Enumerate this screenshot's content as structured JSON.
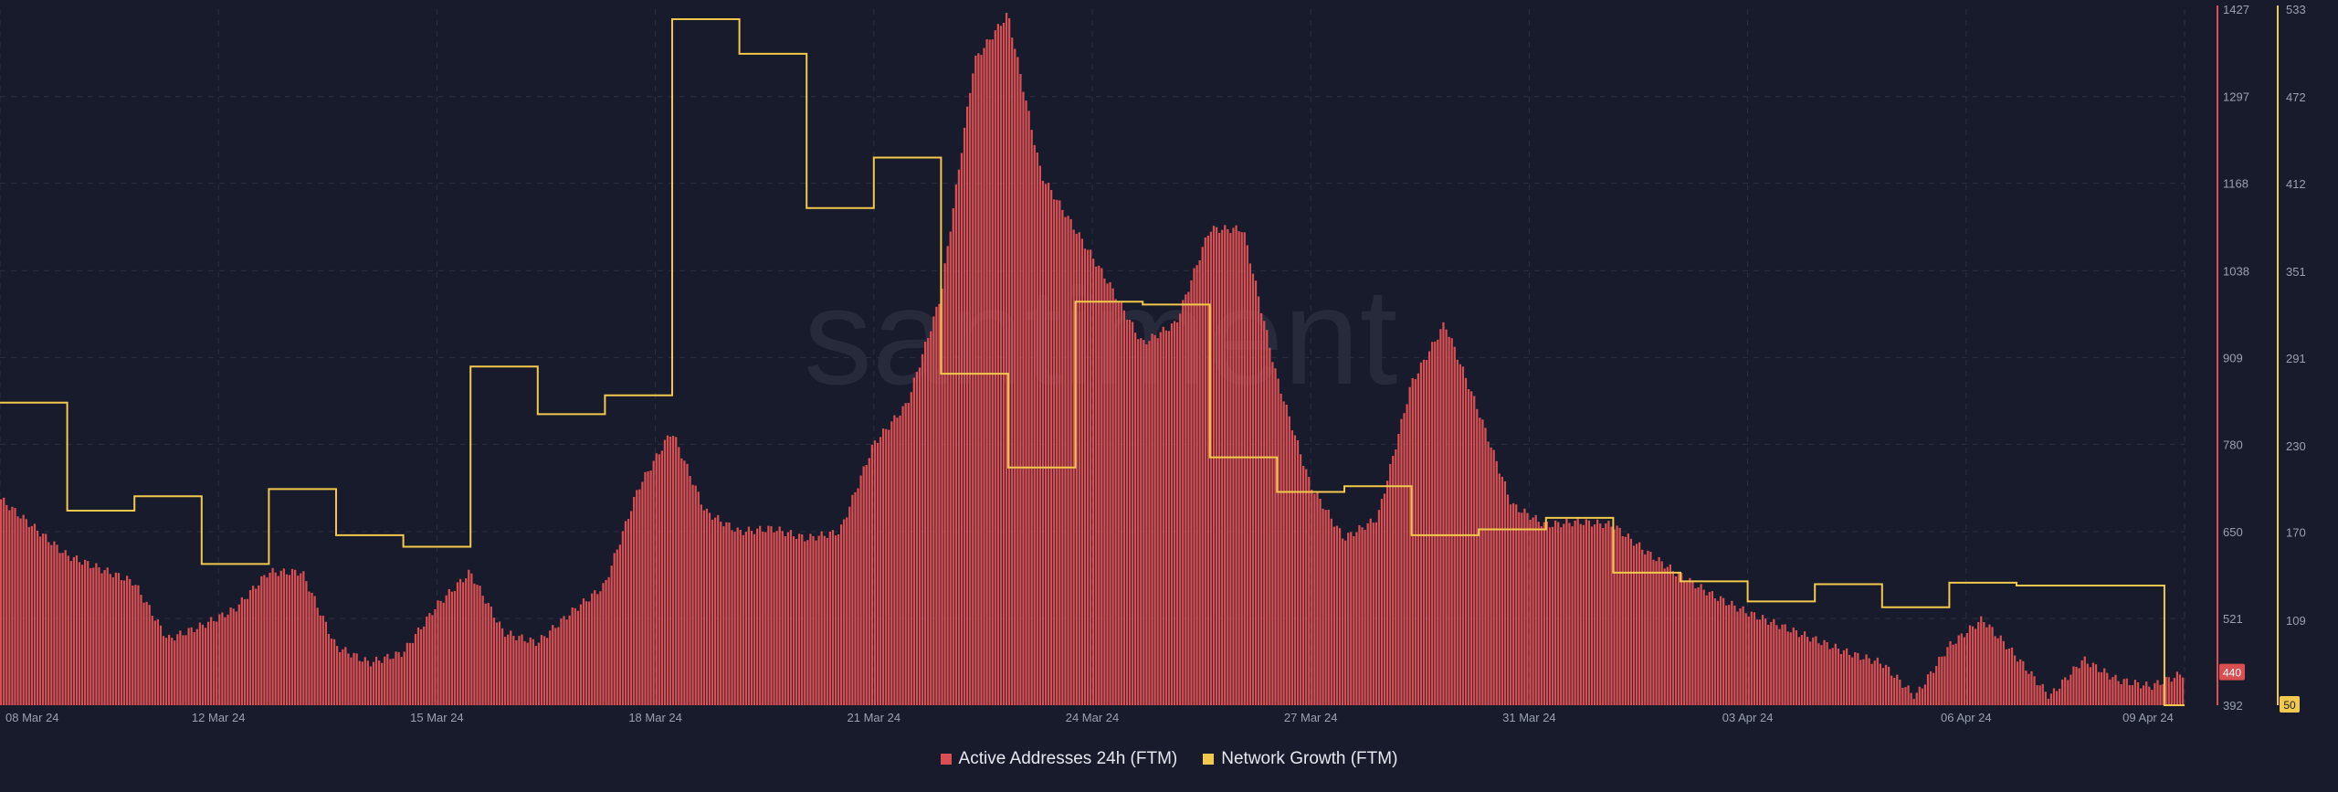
{
  "watermark": "santiment",
  "legend": {
    "active_label": "Active Addresses 24h (FTM)",
    "growth_label": "Network Growth (FTM)"
  },
  "colors": {
    "background": "#181b2b",
    "grid": "#2a2e42",
    "active": "#d94f52",
    "growth": "#f2c94c",
    "axis_text": "#9aa0b4"
  },
  "chart_data": {
    "type": "bar",
    "x_ticks": [
      "08 Mar 24",
      "12 Mar 24",
      "15 Mar 24",
      "18 Mar 24",
      "21 Mar 24",
      "24 Mar 24",
      "27 Mar 24",
      "31 Mar 24",
      "03 Apr 24",
      "06 Apr 24",
      "09 Apr 24"
    ],
    "grid": true,
    "series": [
      {
        "name": "Active Addresses 24h (FTM)",
        "type": "bar",
        "axis": "left",
        "ylim": [
          392,
          1427
        ],
        "y_ticks": [
          392,
          521,
          650,
          780,
          909,
          1038,
          1168,
          1297,
          1427
        ],
        "last_value": "440",
        "x": [
          0,
          1,
          1.5,
          2,
          2.5,
          3,
          3.5,
          4,
          4.5,
          5,
          5.5,
          6,
          6.5,
          7,
          7.5,
          8,
          8.5,
          9,
          9.5,
          10,
          10.5,
          11,
          11.5,
          12,
          12.5,
          13,
          13.5,
          14,
          14.5,
          15,
          15.5,
          16,
          16.5,
          17,
          17.5,
          18,
          18.5,
          19,
          19.5,
          20,
          20.5,
          21,
          21.5,
          22,
          22.5,
          23,
          23.5,
          24,
          24.5,
          25,
          25.5,
          26,
          26.5,
          27,
          27.5,
          28,
          28.5,
          29,
          29.5,
          30,
          30.5,
          31,
          31.5,
          32,
          32.5
        ],
        "values": [
          700,
          615,
          595,
          575,
          490,
          510,
          535,
          590,
          590,
          480,
          455,
          470,
          540,
          590,
          500,
          485,
          530,
          570,
          715,
          800,
          680,
          650,
          655,
          640,
          650,
          780,
          840,
          1000,
          1350,
          1420,
          1180,
          1100,
          1020,
          930,
          960,
          1100,
          1100,
          880,
          720,
          640,
          670,
          870,
          960,
          830,
          690,
          660,
          665,
          660,
          620,
          585,
          555,
          530,
          510,
          490,
          470,
          455,
          405,
          480,
          520,
          465,
          405,
          460,
          430,
          420,
          440
        ]
      },
      {
        "name": "Network Growth (FTM)",
        "type": "step",
        "axis": "right",
        "ylim": [
          50,
          533
        ],
        "y_ticks": [
          50,
          109,
          170,
          230,
          291,
          351,
          412,
          472,
          533
        ],
        "last_value": "50",
        "x": [
          0,
          1,
          2,
          3,
          4,
          5,
          6,
          7,
          8,
          9,
          10,
          11,
          12,
          13,
          14,
          15,
          16,
          17,
          18,
          19,
          20,
          21,
          22,
          23,
          24,
          25,
          26,
          27,
          28,
          29,
          30,
          31,
          31.7,
          32.2,
          32.5
        ],
        "values": [
          260,
          185,
          195,
          148,
          200,
          168,
          160,
          285,
          252,
          265,
          526,
          502,
          395,
          430,
          280,
          215,
          330,
          328,
          222,
          198,
          202,
          168,
          172,
          180,
          142,
          136,
          122,
          134,
          118,
          135,
          133,
          133,
          133,
          50,
          50
        ]
      }
    ]
  }
}
